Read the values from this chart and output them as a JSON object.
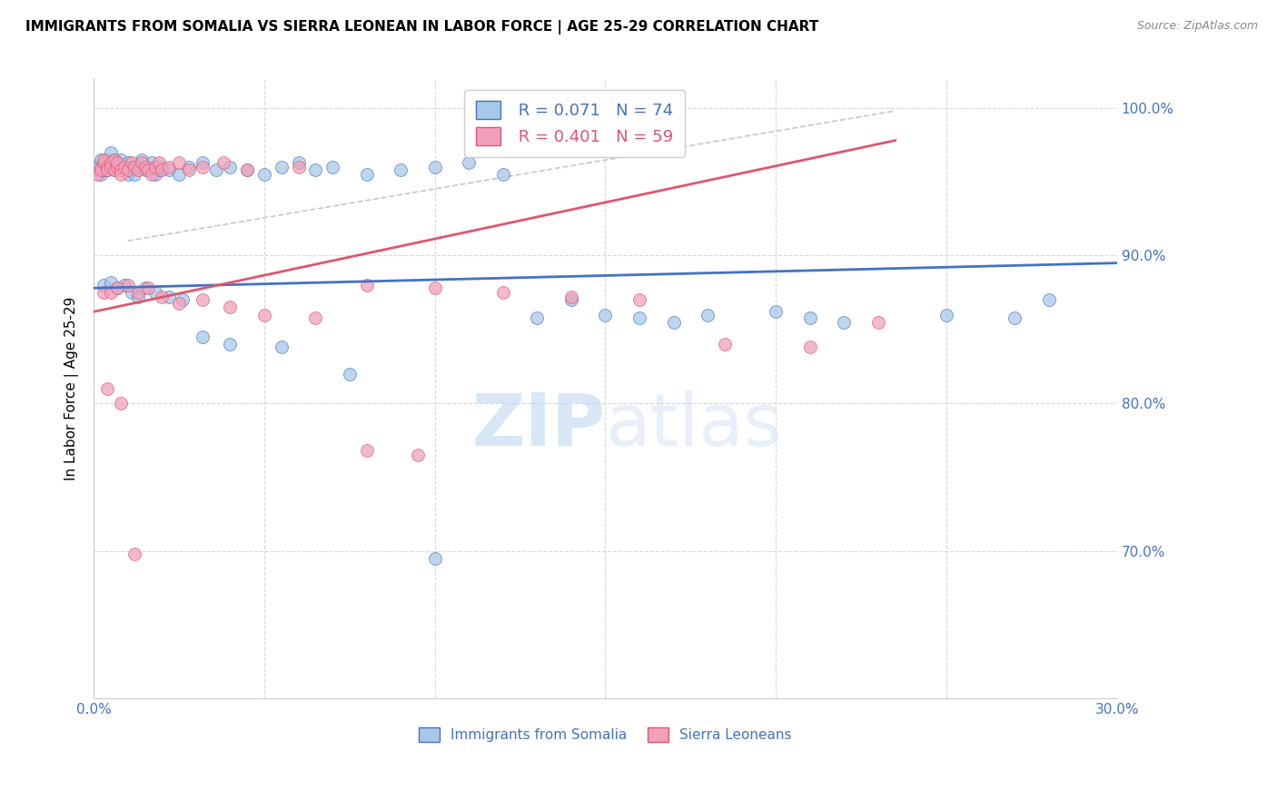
{
  "title": "IMMIGRANTS FROM SOMALIA VS SIERRA LEONEAN IN LABOR FORCE | AGE 25-29 CORRELATION CHART",
  "source": "Source: ZipAtlas.com",
  "ylabel": "In Labor Force | Age 25-29",
  "xlim": [
    0.0,
    0.3
  ],
  "ylim": [
    0.6,
    1.02
  ],
  "ytick_positions": [
    1.0,
    0.9,
    0.8,
    0.7
  ],
  "ytick_labels": [
    "100.0%",
    "90.0%",
    "80.0%",
    "70.0%"
  ],
  "xticks": [
    0.0,
    0.05,
    0.1,
    0.15,
    0.2,
    0.25,
    0.3
  ],
  "xtick_labels": [
    "0.0%",
    "",
    "",
    "",
    "",
    "",
    "30.0%"
  ],
  "somalia_R": 0.071,
  "somalia_N": 74,
  "sierra_R": 0.401,
  "sierra_N": 59,
  "somalia_color": "#a8c8e8",
  "sierra_color": "#f0a0b8",
  "somalia_line_color": "#4472c4",
  "sierra_line_color": "#e05570",
  "diag_line_color": "#c8c8c8",
  "background_color": "#ffffff",
  "grid_color": "#d8d8d8",
  "axis_color": "#4472c4",
  "somalia_points_x": [
    0.001,
    0.002,
    0.002,
    0.003,
    0.003,
    0.004,
    0.004,
    0.005,
    0.005,
    0.006,
    0.006,
    0.007,
    0.007,
    0.008,
    0.008,
    0.009,
    0.009,
    0.01,
    0.01,
    0.011,
    0.011,
    0.012,
    0.013,
    0.014,
    0.015,
    0.016,
    0.017,
    0.018,
    0.019,
    0.02,
    0.022,
    0.025,
    0.028,
    0.032,
    0.036,
    0.04,
    0.045,
    0.05,
    0.055,
    0.06,
    0.065,
    0.07,
    0.08,
    0.09,
    0.1,
    0.11,
    0.12,
    0.13,
    0.14,
    0.15,
    0.16,
    0.17,
    0.18,
    0.2,
    0.21,
    0.22,
    0.25,
    0.27,
    0.28,
    0.003,
    0.005,
    0.007,
    0.009,
    0.011,
    0.013,
    0.015,
    0.018,
    0.022,
    0.026,
    0.032,
    0.04,
    0.055,
    0.075,
    0.1
  ],
  "somalia_points_y": [
    0.96,
    0.965,
    0.955,
    0.96,
    0.958,
    0.965,
    0.958,
    0.963,
    0.97,
    0.965,
    0.958,
    0.96,
    0.963,
    0.958,
    0.965,
    0.96,
    0.958,
    0.963,
    0.955,
    0.96,
    0.958,
    0.955,
    0.96,
    0.965,
    0.958,
    0.96,
    0.963,
    0.955,
    0.958,
    0.96,
    0.958,
    0.955,
    0.96,
    0.963,
    0.958,
    0.96,
    0.958,
    0.955,
    0.96,
    0.963,
    0.958,
    0.96,
    0.955,
    0.958,
    0.96,
    0.963,
    0.955,
    0.858,
    0.87,
    0.86,
    0.858,
    0.855,
    0.86,
    0.862,
    0.858,
    0.855,
    0.86,
    0.858,
    0.87,
    0.88,
    0.882,
    0.878,
    0.88,
    0.875,
    0.872,
    0.878,
    0.875,
    0.872,
    0.87,
    0.845,
    0.84,
    0.838,
    0.82,
    0.695
  ],
  "sierra_points_x": [
    0.001,
    0.002,
    0.002,
    0.003,
    0.003,
    0.004,
    0.004,
    0.005,
    0.005,
    0.006,
    0.006,
    0.007,
    0.007,
    0.008,
    0.008,
    0.009,
    0.01,
    0.011,
    0.012,
    0.013,
    0.014,
    0.015,
    0.016,
    0.017,
    0.018,
    0.019,
    0.02,
    0.022,
    0.025,
    0.028,
    0.032,
    0.038,
    0.045,
    0.06,
    0.08,
    0.1,
    0.12,
    0.14,
    0.16,
    0.185,
    0.21,
    0.23,
    0.003,
    0.005,
    0.007,
    0.01,
    0.013,
    0.016,
    0.02,
    0.025,
    0.032,
    0.04,
    0.05,
    0.065,
    0.08,
    0.095,
    0.004,
    0.008,
    0.012
  ],
  "sierra_points_y": [
    0.955,
    0.96,
    0.958,
    0.963,
    0.965,
    0.96,
    0.958,
    0.963,
    0.96,
    0.958,
    0.965,
    0.96,
    0.963,
    0.958,
    0.955,
    0.96,
    0.958,
    0.963,
    0.96,
    0.958,
    0.963,
    0.96,
    0.958,
    0.955,
    0.96,
    0.963,
    0.958,
    0.96,
    0.963,
    0.958,
    0.96,
    0.963,
    0.958,
    0.96,
    0.88,
    0.878,
    0.875,
    0.872,
    0.87,
    0.84,
    0.838,
    0.855,
    0.875,
    0.875,
    0.878,
    0.88,
    0.875,
    0.878,
    0.872,
    0.868,
    0.87,
    0.865,
    0.86,
    0.858,
    0.768,
    0.765,
    0.81,
    0.8,
    0.698
  ],
  "somalia_trend_x": [
    0.0,
    0.3
  ],
  "somalia_trend_y": [
    0.878,
    0.895
  ],
  "sierra_trend_x": [
    0.0,
    0.235
  ],
  "sierra_trend_y": [
    0.862,
    0.978
  ],
  "diag_trend_x": [
    0.01,
    0.235
  ],
  "diag_trend_y": [
    0.91,
    0.998
  ]
}
